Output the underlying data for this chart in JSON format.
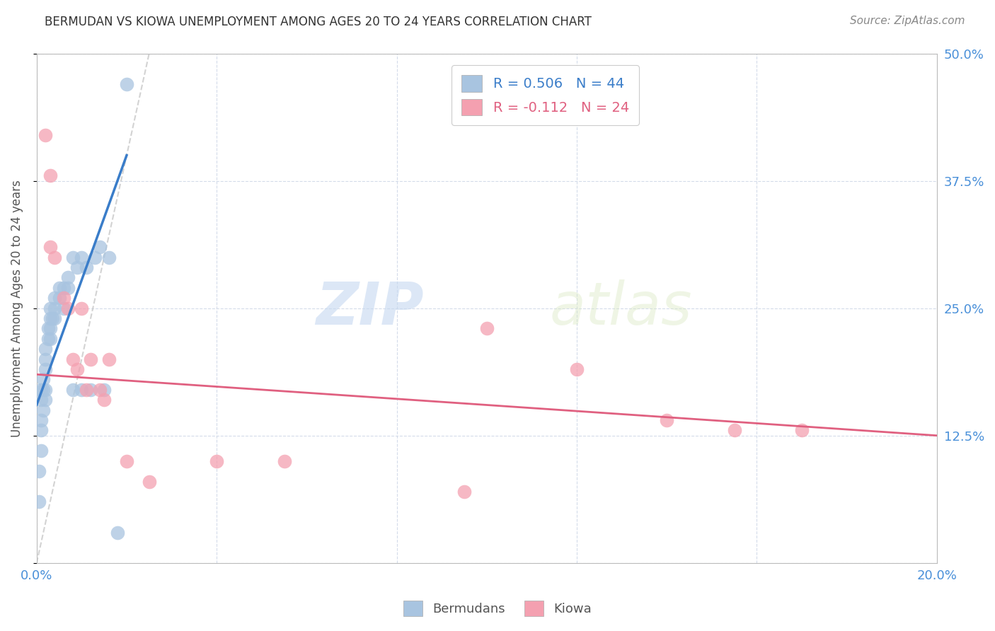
{
  "title": "BERMUDAN VS KIOWA UNEMPLOYMENT AMONG AGES 20 TO 24 YEARS CORRELATION CHART",
  "source": "Source: ZipAtlas.com",
  "ylabel": "Unemployment Among Ages 20 to 24 years",
  "xlim": [
    0.0,
    0.2
  ],
  "ylim": [
    0.0,
    0.5
  ],
  "xticks": [
    0.0,
    0.04,
    0.08,
    0.12,
    0.16,
    0.2
  ],
  "yticks": [
    0.0,
    0.125,
    0.25,
    0.375,
    0.5
  ],
  "xtick_labels": [
    "0.0%",
    "",
    "",
    "",
    "",
    "20.0%"
  ],
  "ytick_labels": [
    "",
    "12.5%",
    "25.0%",
    "37.5%",
    "50.0%"
  ],
  "bermudans_color": "#a8c4e0",
  "kiowa_color": "#f4a0b0",
  "blue_line_color": "#3a7dc9",
  "pink_line_color": "#e06080",
  "gray_line_color": "#c8c8c8",
  "R_bermudans": 0.506,
  "N_bermudans": 44,
  "R_kiowa": -0.112,
  "N_kiowa": 24,
  "watermark_zip": "ZIP",
  "watermark_atlas": "atlas",
  "bermudans_x": [
    0.0005,
    0.0005,
    0.001,
    0.001,
    0.001,
    0.001,
    0.001,
    0.0015,
    0.0015,
    0.0015,
    0.002,
    0.002,
    0.002,
    0.002,
    0.002,
    0.0025,
    0.0025,
    0.003,
    0.003,
    0.003,
    0.003,
    0.0035,
    0.004,
    0.004,
    0.004,
    0.005,
    0.005,
    0.006,
    0.006,
    0.007,
    0.007,
    0.008,
    0.008,
    0.009,
    0.01,
    0.01,
    0.011,
    0.012,
    0.013,
    0.014,
    0.015,
    0.016,
    0.018,
    0.02
  ],
  "bermudans_y": [
    0.06,
    0.09,
    0.11,
    0.13,
    0.14,
    0.16,
    0.17,
    0.15,
    0.17,
    0.18,
    0.16,
    0.17,
    0.19,
    0.2,
    0.21,
    0.22,
    0.23,
    0.22,
    0.23,
    0.24,
    0.25,
    0.24,
    0.24,
    0.25,
    0.26,
    0.26,
    0.27,
    0.25,
    0.27,
    0.27,
    0.28,
    0.17,
    0.3,
    0.29,
    0.17,
    0.3,
    0.29,
    0.17,
    0.3,
    0.31,
    0.17,
    0.3,
    0.03,
    0.47
  ],
  "kiowa_x": [
    0.002,
    0.003,
    0.003,
    0.004,
    0.006,
    0.007,
    0.008,
    0.009,
    0.01,
    0.011,
    0.012,
    0.014,
    0.015,
    0.016,
    0.02,
    0.025,
    0.04,
    0.055,
    0.095,
    0.1,
    0.12,
    0.14,
    0.155,
    0.17
  ],
  "kiowa_y": [
    0.42,
    0.38,
    0.31,
    0.3,
    0.26,
    0.25,
    0.2,
    0.19,
    0.25,
    0.17,
    0.2,
    0.17,
    0.16,
    0.2,
    0.1,
    0.08,
    0.1,
    0.1,
    0.07,
    0.23,
    0.19,
    0.14,
    0.13,
    0.13
  ],
  "gray_line_x": [
    0.0,
    0.025
  ],
  "gray_line_y": [
    0.0,
    0.5
  ],
  "blue_line_x": [
    0.0,
    0.02
  ],
  "blue_line_y": [
    0.155,
    0.4
  ],
  "pink_line_x": [
    0.0,
    0.2
  ],
  "pink_line_y": [
    0.185,
    0.125
  ]
}
